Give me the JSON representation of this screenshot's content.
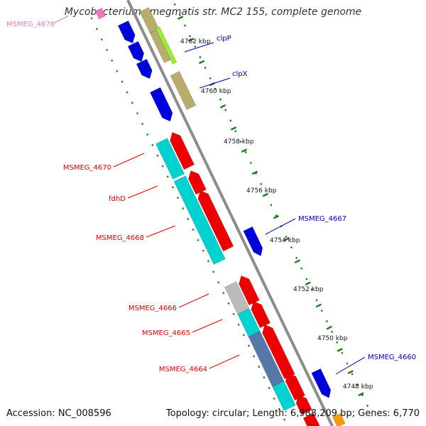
{
  "title": "Mycobacterium smegmatis str. MC2 155, complete genome",
  "footer": {
    "accession": "Accession: NC_008596",
    "summary": "Topology: circular; Length: 6,988,209 bp; Genes: 6,770"
  },
  "colors": {
    "backbone": "#8c8c8c",
    "tick": "#1a7a1a",
    "gene_forward": "#0000dd",
    "gene_reverse": "#ee0000",
    "label_forward": "#0000bb",
    "label_reverse": "#dd0000",
    "label_pink": "#ee77bb",
    "cyan": "#00d2d2",
    "olive": "#b9ad6e",
    "lime": "#99ee33",
    "steel": "#5577aa",
    "gray": "#bbbbbb",
    "orange": "#ff9900"
  },
  "scale_labels": [
    "4762 kbp",
    "4760 kbp",
    "4758 kbp",
    "4756 kbp",
    "4754 kbp",
    "4752 kbp",
    "4750 kbp",
    "4748 kbp"
  ],
  "gene_labels": [
    {
      "text": "MSMEG_4676",
      "color": "label_pink"
    },
    {
      "text": "clpP",
      "color": "label_forward"
    },
    {
      "text": "clpX",
      "color": "label_forward"
    },
    {
      "text": "MSMEG_4670",
      "color": "label_reverse"
    },
    {
      "text": "fdhD",
      "color": "label_reverse"
    },
    {
      "text": "MSMEG_4668",
      "color": "label_reverse"
    },
    {
      "text": "MSMEG_4667",
      "color": "label_forward"
    },
    {
      "text": "MSMEG_4666",
      "color": "label_reverse"
    },
    {
      "text": "MSMEG_4665",
      "color": "label_reverse"
    },
    {
      "text": "MSMEG_4664",
      "color": "label_reverse"
    },
    {
      "text": "MSMEG_4660",
      "color": "label_forward"
    }
  ]
}
